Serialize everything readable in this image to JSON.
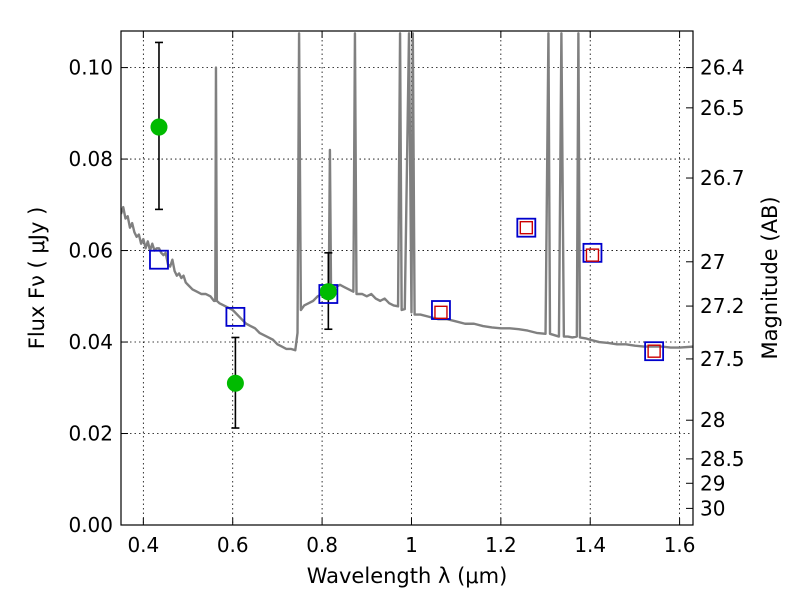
{
  "chart_data": {
    "type": "scatter",
    "xlabel": "Wavelength  λ (μm)",
    "ylabel": "Flux  Fν  ( μJy )",
    "y2label": "Magnitude (AB)",
    "xlim": [
      0.35,
      1.63
    ],
    "ylim": [
      0.0,
      0.108
    ],
    "grid": true,
    "x_ticks": [
      0.4,
      0.6,
      0.8,
      1.0,
      1.2,
      1.4,
      1.6
    ],
    "x_tick_labels": [
      "0.4",
      "0.6",
      "0.8",
      "1",
      "1.2",
      "1.4",
      "1.6"
    ],
    "y_ticks": [
      0.0,
      0.02,
      0.04,
      0.06,
      0.08,
      0.1
    ],
    "y_tick_labels": [
      "0.00",
      "0.02",
      "0.04",
      "0.06",
      "0.08",
      "0.10"
    ],
    "y2_ticks": [
      {
        "label": "26.4",
        "mag": 26.4
      },
      {
        "label": "26.5",
        "mag": 26.5
      },
      {
        "label": "26.7",
        "mag": 26.7
      },
      {
        "label": "27",
        "mag": 27.0
      },
      {
        "label": "27.2",
        "mag": 27.2
      },
      {
        "label": "27.5",
        "mag": 27.5
      },
      {
        "label": "28",
        "mag": 28.0
      },
      {
        "label": "28.5",
        "mag": 28.5
      },
      {
        "label": "29",
        "mag": 29.0
      },
      {
        "label": "30",
        "mag": 30.0
      }
    ],
    "observed": {
      "color": "#00bb00",
      "points": [
        {
          "x": 0.435,
          "y": 0.087,
          "ylow": 0.069,
          "yhigh": 0.1055
        },
        {
          "x": 0.606,
          "y": 0.031,
          "ylow": 0.0212,
          "yhigh": 0.041
        },
        {
          "x": 0.814,
          "y": 0.051,
          "ylow": 0.0428,
          "yhigh": 0.0595
        }
      ]
    },
    "model_blue": {
      "color": "#0000cc",
      "points": [
        {
          "x": 0.435,
          "y": 0.058
        },
        {
          "x": 0.606,
          "y": 0.0455
        },
        {
          "x": 0.814,
          "y": 0.0505
        },
        {
          "x": 1.066,
          "y": 0.047
        },
        {
          "x": 1.257,
          "y": 0.065
        },
        {
          "x": 1.405,
          "y": 0.0595
        },
        {
          "x": 1.543,
          "y": 0.038
        }
      ]
    },
    "model_red": {
      "color": "#cc0000",
      "points": [
        {
          "x": 1.066,
          "y": 0.0465
        },
        {
          "x": 1.257,
          "y": 0.065
        },
        {
          "x": 1.405,
          "y": 0.059
        },
        {
          "x": 1.543,
          "y": 0.038
        }
      ]
    },
    "spectrum": {
      "color": "#808080",
      "points": [
        [
          0.35,
          0.068
        ],
        [
          0.355,
          0.0695
        ],
        [
          0.36,
          0.067
        ],
        [
          0.365,
          0.0675
        ],
        [
          0.37,
          0.065
        ],
        [
          0.375,
          0.066
        ],
        [
          0.38,
          0.064
        ],
        [
          0.385,
          0.063
        ],
        [
          0.39,
          0.0635
        ],
        [
          0.395,
          0.0615
        ],
        [
          0.4,
          0.0625
        ],
        [
          0.405,
          0.0605
        ],
        [
          0.41,
          0.062
        ],
        [
          0.415,
          0.06
        ],
        [
          0.42,
          0.0615
        ],
        [
          0.425,
          0.06
        ],
        [
          0.43,
          0.0605
        ],
        [
          0.435,
          0.0605
        ],
        [
          0.44,
          0.0595
        ],
        [
          0.445,
          0.059
        ],
        [
          0.45,
          0.0595
        ],
        [
          0.455,
          0.057
        ],
        [
          0.46,
          0.0565
        ],
        [
          0.465,
          0.058
        ],
        [
          0.47,
          0.0555
        ],
        [
          0.475,
          0.0545
        ],
        [
          0.48,
          0.055
        ],
        [
          0.485,
          0.054
        ],
        [
          0.49,
          0.0545
        ],
        [
          0.495,
          0.053
        ],
        [
          0.5,
          0.0525
        ],
        [
          0.51,
          0.0515
        ],
        [
          0.52,
          0.051
        ],
        [
          0.53,
          0.0505
        ],
        [
          0.54,
          0.0505
        ],
        [
          0.55,
          0.05
        ],
        [
          0.558,
          0.049
        ],
        [
          0.561,
          0.049
        ],
        [
          0.5625,
          0.1
        ],
        [
          0.5645,
          0.049
        ],
        [
          0.57,
          0.0485
        ],
        [
          0.58,
          0.048
        ],
        [
          0.59,
          0.0475
        ],
        [
          0.6,
          0.047
        ],
        [
          0.61,
          0.046
        ],
        [
          0.62,
          0.045
        ],
        [
          0.63,
          0.044
        ],
        [
          0.64,
          0.0435
        ],
        [
          0.65,
          0.043
        ],
        [
          0.66,
          0.042
        ],
        [
          0.67,
          0.0415
        ],
        [
          0.68,
          0.041
        ],
        [
          0.69,
          0.0405
        ],
        [
          0.7,
          0.0395
        ],
        [
          0.71,
          0.039
        ],
        [
          0.72,
          0.0385
        ],
        [
          0.73,
          0.0385
        ],
        [
          0.74,
          0.0382
        ],
        [
          0.745,
          0.042
        ],
        [
          0.7485,
          0.1075
        ],
        [
          0.7525,
          0.047
        ],
        [
          0.76,
          0.048
        ],
        [
          0.77,
          0.0485
        ],
        [
          0.78,
          0.049
        ],
        [
          0.79,
          0.05
        ],
        [
          0.8,
          0.0505
        ],
        [
          0.81,
          0.051
        ],
        [
          0.815,
          0.052
        ],
        [
          0.8175,
          0.082
        ],
        [
          0.82,
          0.0515
        ],
        [
          0.83,
          0.052
        ],
        [
          0.84,
          0.0525
        ],
        [
          0.85,
          0.052
        ],
        [
          0.86,
          0.0515
        ],
        [
          0.87,
          0.051
        ],
        [
          0.8735,
          0.1075
        ],
        [
          0.877,
          0.0505
        ],
        [
          0.89,
          0.0505
        ],
        [
          0.9,
          0.05
        ],
        [
          0.91,
          0.0505
        ],
        [
          0.92,
          0.0495
        ],
        [
          0.93,
          0.049
        ],
        [
          0.94,
          0.0495
        ],
        [
          0.95,
          0.0485
        ],
        [
          0.96,
          0.048
        ],
        [
          0.97,
          0.0478
        ],
        [
          0.9745,
          0.1075
        ],
        [
          0.978,
          0.047
        ],
        [
          0.985,
          0.0472
        ],
        [
          0.9945,
          0.1075
        ],
        [
          1.0,
          0.0465
        ],
        [
          1.003,
          0.1075
        ],
        [
          1.007,
          0.046
        ],
        [
          1.02,
          0.046
        ],
        [
          1.04,
          0.0455
        ],
        [
          1.06,
          0.045
        ],
        [
          1.08,
          0.045
        ],
        [
          1.1,
          0.0445
        ],
        [
          1.12,
          0.044
        ],
        [
          1.14,
          0.044
        ],
        [
          1.16,
          0.0435
        ],
        [
          1.18,
          0.0432
        ],
        [
          1.2,
          0.043
        ],
        [
          1.22,
          0.043
        ],
        [
          1.24,
          0.0428
        ],
        [
          1.26,
          0.0425
        ],
        [
          1.28,
          0.042
        ],
        [
          1.3,
          0.0418
        ],
        [
          1.3065,
          0.1075
        ],
        [
          1.31,
          0.0418
        ],
        [
          1.32,
          0.0415
        ],
        [
          1.33,
          0.0412
        ],
        [
          1.3355,
          0.1075
        ],
        [
          1.341,
          0.0412
        ],
        [
          1.35,
          0.0412
        ],
        [
          1.36,
          0.041
        ],
        [
          1.37,
          0.0412
        ],
        [
          1.3735,
          0.1075
        ],
        [
          1.377,
          0.041
        ],
        [
          1.39,
          0.0408
        ],
        [
          1.4,
          0.0405
        ],
        [
          1.42,
          0.04
        ],
        [
          1.44,
          0.0398
        ],
        [
          1.46,
          0.0395
        ],
        [
          1.48,
          0.0395
        ],
        [
          1.5,
          0.0392
        ],
        [
          1.52,
          0.039
        ],
        [
          1.54,
          0.039
        ],
        [
          1.56,
          0.039
        ],
        [
          1.58,
          0.0388
        ],
        [
          1.6,
          0.0388
        ],
        [
          1.63,
          0.039
        ]
      ]
    }
  }
}
